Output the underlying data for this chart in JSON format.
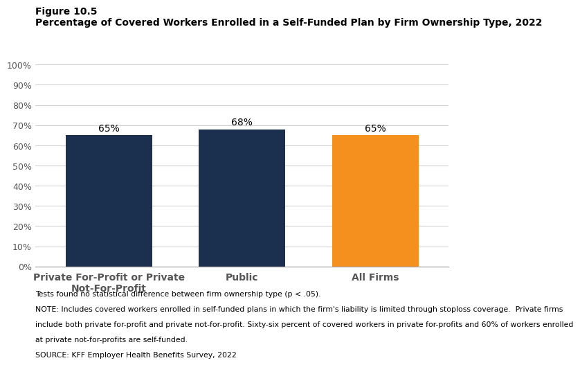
{
  "figure_label": "Figure 10.5",
  "title": "Percentage of Covered Workers Enrolled in a Self-Funded Plan by Firm Ownership Type, 2022",
  "categories": [
    "Private For-Profit or Private\nNot-For-Profit",
    "Public",
    "All Firms"
  ],
  "values": [
    65,
    68,
    65
  ],
  "bar_colors": [
    "#1b2f4e",
    "#1b2f4e",
    "#f5901e"
  ],
  "ylim": [
    0,
    100
  ],
  "yticks": [
    0,
    10,
    20,
    30,
    40,
    50,
    60,
    70,
    80,
    90,
    100
  ],
  "bar_label_fontsize": 10,
  "xtick_fontsize": 10,
  "ytick_fontsize": 9,
  "figure_label_fontsize": 10,
  "title_fontsize": 10,
  "footnote_fontsize": 7.8,
  "footnote_lines": [
    "Tests found no statistical difference between firm ownership type (p < .05).",
    "NOTE: Includes covered workers enrolled in self-funded plans in which the firm's liability is limited through stoploss coverage.  Private firms",
    "include both private for-profit and private not-for-profit. Sixty-six percent of covered workers in private for-profits and 60% of workers enrolled",
    "at private not-for-profits are self-funded.",
    "SOURCE: KFF Employer Health Benefits Survey, 2022"
  ],
  "background_color": "#ffffff",
  "grid_color": "#d0d0d0",
  "xtick_color": "#555555",
  "bar_width": 0.65
}
